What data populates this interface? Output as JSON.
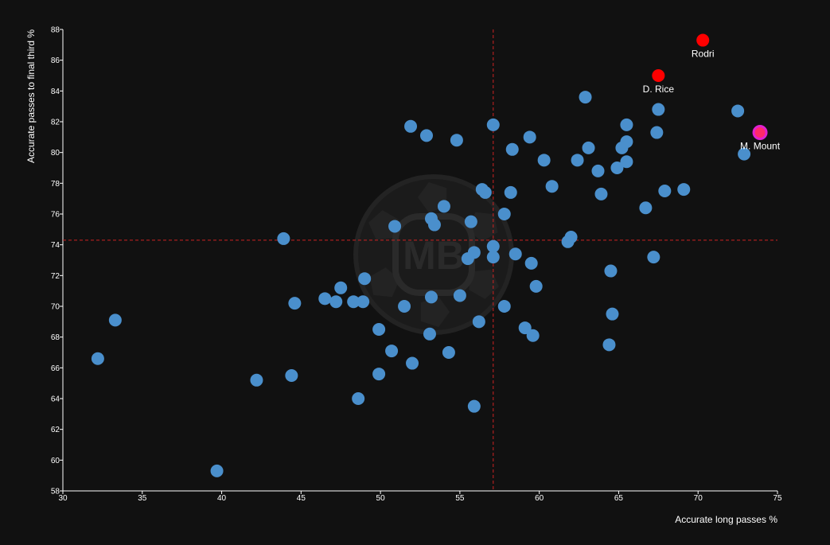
{
  "chart_data": {
    "type": "scatter",
    "title": "",
    "xlabel": "Accurate long passes %",
    "ylabel": "Accurate passes to final third %",
    "xlim": [
      30,
      75
    ],
    "ylim": [
      58,
      88
    ],
    "xticks": [
      30,
      35,
      40,
      45,
      50,
      55,
      60,
      65,
      70,
      75
    ],
    "yticks": [
      58,
      60,
      62,
      64,
      66,
      68,
      70,
      72,
      74,
      76,
      78,
      80,
      82,
      84,
      86,
      88
    ],
    "grid": false,
    "reference_lines": {
      "x": 57.1,
      "y": 74.3,
      "color": "#cc2222",
      "style": "dashed"
    },
    "watermark": "MB",
    "colors": {
      "background": "#111111",
      "points": "#4a8fcc",
      "highlight": "#ff0000",
      "focus_fill": "#ff2a6a",
      "focus_ring": "#e020d0",
      "text": "#ffffff"
    },
    "series": [
      {
        "role": "others",
        "points": [
          {
            "x": 32.2,
            "y": 66.6
          },
          {
            "x": 33.3,
            "y": 69.1
          },
          {
            "x": 39.7,
            "y": 59.3
          },
          {
            "x": 42.2,
            "y": 65.2
          },
          {
            "x": 43.9,
            "y": 74.4
          },
          {
            "x": 44.4,
            "y": 65.5
          },
          {
            "x": 44.6,
            "y": 70.2
          },
          {
            "x": 46.5,
            "y": 70.5
          },
          {
            "x": 47.2,
            "y": 70.3
          },
          {
            "x": 47.5,
            "y": 71.2
          },
          {
            "x": 48.3,
            "y": 70.3
          },
          {
            "x": 48.6,
            "y": 64.0
          },
          {
            "x": 48.9,
            "y": 70.3
          },
          {
            "x": 49.0,
            "y": 71.8
          },
          {
            "x": 49.9,
            "y": 68.5
          },
          {
            "x": 49.9,
            "y": 65.6
          },
          {
            "x": 50.7,
            "y": 67.1
          },
          {
            "x": 50.9,
            "y": 75.2
          },
          {
            "x": 51.5,
            "y": 70.0
          },
          {
            "x": 51.9,
            "y": 81.7
          },
          {
            "x": 52.0,
            "y": 66.3
          },
          {
            "x": 52.9,
            "y": 81.1
          },
          {
            "x": 53.1,
            "y": 68.2
          },
          {
            "x": 53.2,
            "y": 70.6
          },
          {
            "x": 53.2,
            "y": 75.7
          },
          {
            "x": 53.4,
            "y": 75.3
          },
          {
            "x": 54.0,
            "y": 76.5
          },
          {
            "x": 54.3,
            "y": 67.0
          },
          {
            "x": 54.8,
            "y": 80.8
          },
          {
            "x": 55.0,
            "y": 70.7
          },
          {
            "x": 55.5,
            "y": 73.1
          },
          {
            "x": 55.7,
            "y": 75.5
          },
          {
            "x": 55.9,
            "y": 73.5
          },
          {
            "x": 55.9,
            "y": 63.5
          },
          {
            "x": 56.2,
            "y": 69.0
          },
          {
            "x": 56.4,
            "y": 77.6
          },
          {
            "x": 56.6,
            "y": 77.4
          },
          {
            "x": 57.1,
            "y": 73.9
          },
          {
            "x": 57.1,
            "y": 73.2
          },
          {
            "x": 57.1,
            "y": 81.8
          },
          {
            "x": 57.8,
            "y": 76.0
          },
          {
            "x": 57.8,
            "y": 70.0
          },
          {
            "x": 58.2,
            "y": 77.4
          },
          {
            "x": 58.3,
            "y": 80.2
          },
          {
            "x": 58.5,
            "y": 73.4
          },
          {
            "x": 59.1,
            "y": 68.6
          },
          {
            "x": 59.4,
            "y": 81.0
          },
          {
            "x": 59.5,
            "y": 72.8
          },
          {
            "x": 59.6,
            "y": 68.1
          },
          {
            "x": 59.8,
            "y": 71.3
          },
          {
            "x": 60.3,
            "y": 79.5
          },
          {
            "x": 60.8,
            "y": 77.8
          },
          {
            "x": 61.8,
            "y": 74.2
          },
          {
            "x": 62.0,
            "y": 74.5
          },
          {
            "x": 62.4,
            "y": 79.5
          },
          {
            "x": 62.9,
            "y": 83.6
          },
          {
            "x": 63.1,
            "y": 80.3
          },
          {
            "x": 63.7,
            "y": 78.8
          },
          {
            "x": 63.9,
            "y": 77.3
          },
          {
            "x": 64.4,
            "y": 67.5
          },
          {
            "x": 64.5,
            "y": 72.3
          },
          {
            "x": 64.6,
            "y": 69.5
          },
          {
            "x": 64.9,
            "y": 79.0
          },
          {
            "x": 65.2,
            "y": 80.3
          },
          {
            "x": 65.5,
            "y": 79.4
          },
          {
            "x": 65.5,
            "y": 80.7
          },
          {
            "x": 65.5,
            "y": 81.8
          },
          {
            "x": 66.7,
            "y": 76.4
          },
          {
            "x": 67.2,
            "y": 73.2
          },
          {
            "x": 67.4,
            "y": 81.3
          },
          {
            "x": 67.5,
            "y": 82.8
          },
          {
            "x": 67.9,
            "y": 77.5
          },
          {
            "x": 69.1,
            "y": 77.6
          },
          {
            "x": 72.5,
            "y": 82.7
          },
          {
            "x": 72.9,
            "y": 79.9
          }
        ]
      },
      {
        "role": "highlighted",
        "points": [
          {
            "x": 70.3,
            "y": 87.3,
            "label": "Rodri"
          },
          {
            "x": 67.5,
            "y": 85.0,
            "label": "D. Rice"
          }
        ]
      },
      {
        "role": "focus",
        "points": [
          {
            "x": 73.9,
            "y": 81.3,
            "label": "M. Mount"
          }
        ]
      }
    ]
  }
}
